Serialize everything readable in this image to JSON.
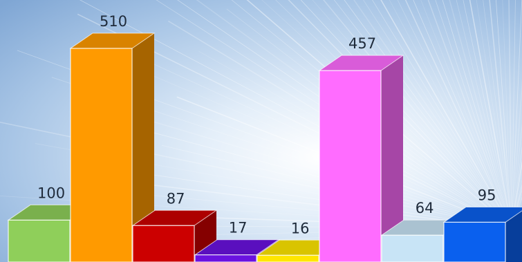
{
  "chart_data": {
    "type": "bar",
    "style": "3d-column",
    "values": [
      100,
      510,
      87,
      17,
      16,
      457,
      64,
      95
    ],
    "data_labels": [
      "100",
      "510",
      "87",
      "17",
      "16",
      "457",
      "64",
      "95"
    ],
    "colors": [
      "#8fcf5a",
      "#ff9a00",
      "#cc0000",
      "#6a12e0",
      "#ffe600",
      "#ff6cff",
      "#c8e4f6",
      "#0a60ee"
    ],
    "grid": false,
    "legend": "none",
    "ylim": [
      0,
      560
    ]
  }
}
